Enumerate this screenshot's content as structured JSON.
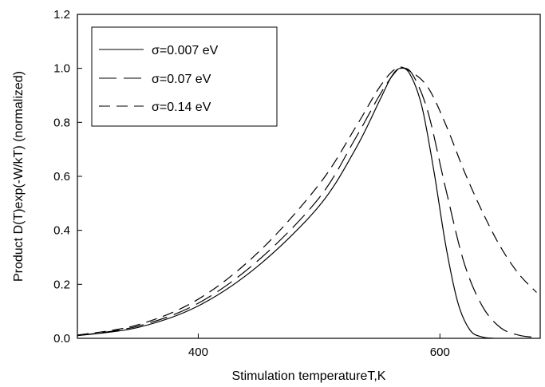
{
  "chart_data": {
    "type": "line",
    "xlabel": "Stimulation temperatureT,K",
    "ylabel": "Product D(T)exp(-W/kT)  (normalized)",
    "xlim": [
      300,
      683
    ],
    "ylim": [
      0,
      1.2
    ],
    "x_ticks": [
      400,
      600
    ],
    "y_ticks": [
      0.0,
      0.2,
      0.4,
      0.6,
      0.8,
      1.0,
      1.2
    ],
    "y_tick_labels": [
      "0.0",
      "0.2",
      "0.4",
      "0.6",
      "0.8",
      "1.0",
      "1.2"
    ],
    "grid": false,
    "legend_position": "top-left",
    "series": [
      {
        "name": "σ=0.007 eV",
        "dash": "solid",
        "points": [
          [
            300,
            0.01
          ],
          [
            350,
            0.04
          ],
          [
            400,
            0.12
          ],
          [
            450,
            0.27
          ],
          [
            500,
            0.49
          ],
          [
            530,
            0.7
          ],
          [
            550,
            0.88
          ],
          [
            560,
            0.97
          ],
          [
            567,
            1.0
          ],
          [
            575,
            0.98
          ],
          [
            585,
            0.86
          ],
          [
            595,
            0.62
          ],
          [
            605,
            0.34
          ],
          [
            615,
            0.13
          ],
          [
            625,
            0.03
          ],
          [
            635,
            0.005
          ],
          [
            645,
            0.0
          ]
        ]
      },
      {
        "name": "σ=0.07 eV",
        "dash": "long",
        "points": [
          [
            300,
            0.01
          ],
          [
            350,
            0.045
          ],
          [
            400,
            0.13
          ],
          [
            450,
            0.29
          ],
          [
            500,
            0.52
          ],
          [
            530,
            0.74
          ],
          [
            550,
            0.9
          ],
          [
            562,
            0.98
          ],
          [
            568,
            1.0
          ],
          [
            577,
            0.98
          ],
          [
            590,
            0.84
          ],
          [
            605,
            0.55
          ],
          [
            620,
            0.28
          ],
          [
            635,
            0.12
          ],
          [
            650,
            0.04
          ],
          [
            665,
            0.012
          ],
          [
            680,
            0.003
          ]
        ]
      },
      {
        "name": "σ=0.14 eV",
        "dash": "medium",
        "points": [
          [
            300,
            0.012
          ],
          [
            350,
            0.05
          ],
          [
            400,
            0.145
          ],
          [
            450,
            0.32
          ],
          [
            500,
            0.57
          ],
          [
            530,
            0.78
          ],
          [
            550,
            0.93
          ],
          [
            564,
            1.0
          ],
          [
            575,
            0.99
          ],
          [
            590,
            0.93
          ],
          [
            605,
            0.79
          ],
          [
            620,
            0.62
          ],
          [
            635,
            0.47
          ],
          [
            650,
            0.34
          ],
          [
            665,
            0.24
          ],
          [
            680,
            0.17
          ]
        ]
      }
    ]
  }
}
